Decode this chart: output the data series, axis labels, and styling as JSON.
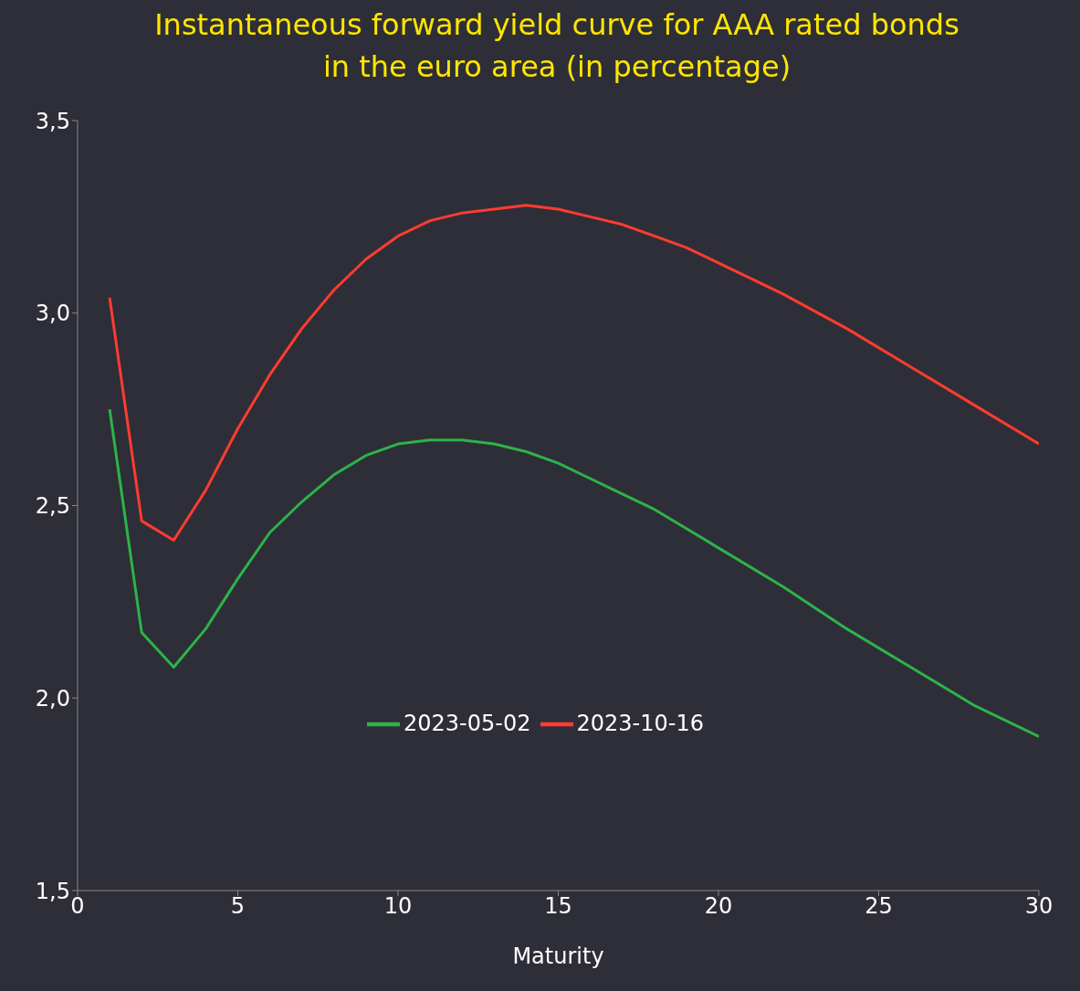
{
  "chart_data": {
    "type": "line",
    "title": "Instantaneous forward yield curve for AAA rated bonds in the euro area (in percentage)",
    "xlabel": "Maturity",
    "x": [
      1,
      2,
      3,
      4,
      5,
      6,
      7,
      8,
      9,
      10,
      11,
      12,
      13,
      14,
      15,
      16,
      17,
      18,
      19,
      20,
      22,
      24,
      26,
      28,
      30
    ],
    "series": [
      {
        "name": "2023-05-02",
        "color": "#2db34a",
        "values": [
          2.75,
          2.17,
          2.08,
          2.18,
          2.31,
          2.43,
          2.51,
          2.58,
          2.63,
          2.66,
          2.67,
          2.67,
          2.66,
          2.64,
          2.61,
          2.57,
          2.53,
          2.49,
          2.44,
          2.39,
          2.29,
          2.18,
          2.08,
          1.98,
          1.9
        ]
      },
      {
        "name": "2023-10-16",
        "color": "#ff3c30",
        "values": [
          3.04,
          2.46,
          2.41,
          2.54,
          2.7,
          2.84,
          2.96,
          3.06,
          3.14,
          3.2,
          3.24,
          3.26,
          3.27,
          3.28,
          3.27,
          3.25,
          3.23,
          3.2,
          3.17,
          3.13,
          3.05,
          2.96,
          2.86,
          2.76,
          2.66
        ]
      }
    ],
    "xlim": [
      0,
      30
    ],
    "xticks": [
      0,
      5,
      10,
      15,
      20,
      25,
      30
    ],
    "ylim": [
      1.5,
      3.5
    ],
    "yticks": [
      {
        "value": 1.5,
        "label": "1,5"
      },
      {
        "value": 2,
        "label": "2,0"
      },
      {
        "value": 2.5,
        "label": "2,5"
      },
      {
        "value": 3,
        "label": "3,0"
      },
      {
        "value": 3.5,
        "label": "3,5"
      }
    ],
    "grid": false,
    "legend": "center",
    "marker": "none",
    "line_style": "solid"
  }
}
